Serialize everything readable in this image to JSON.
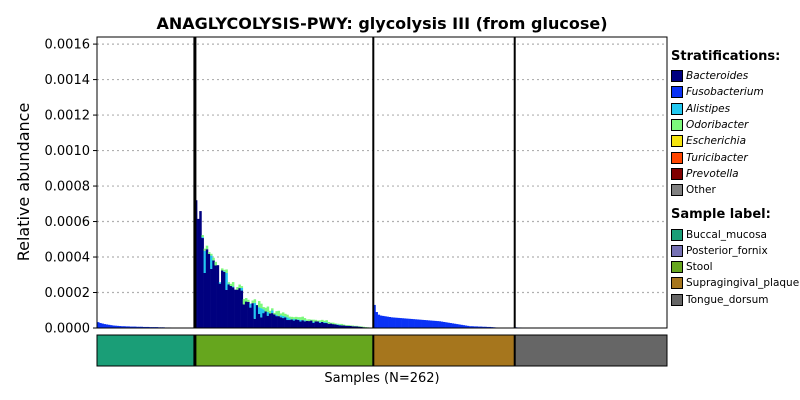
{
  "chart_data": {
    "type": "bar",
    "title": "ANAGLYCOLYSIS-PWY: glycolysis III (from glucose)",
    "ylabel": "Relative abundance",
    "xlabel": "Samples (N=262)",
    "ylim": [
      0,
      0.00164
    ],
    "yticks": [
      "0.0000",
      "0.0002",
      "0.0004",
      "0.0006",
      "0.0008",
      "0.0010",
      "0.0012",
      "0.0014",
      "0.0016"
    ],
    "grid": true,
    "stratifications_title": "Stratifications:",
    "stratifications": [
      {
        "name": "Bacteroides",
        "color": "#00007f"
      },
      {
        "name": "Fusobacterium",
        "color": "#0a32f5"
      },
      {
        "name": "Alistipes",
        "color": "#22c8f0"
      },
      {
        "name": "Odoribacter",
        "color": "#7cf97c"
      },
      {
        "name": "Escherichia",
        "color": "#f5e40f"
      },
      {
        "name": "Turicibacter",
        "color": "#ff4500"
      },
      {
        "name": "Prevotella",
        "color": "#800000"
      },
      {
        "name": "Other",
        "color": "#808080"
      }
    ],
    "sample_label_title": "Sample label:",
    "sample_labels": [
      {
        "name": "Buccal_mucosa",
        "color": "#1a9e77"
      },
      {
        "name": "Posterior_fornix",
        "color": "#7570b3"
      },
      {
        "name": "Stool",
        "color": "#66a61e"
      },
      {
        "name": "Supragingival_plaque",
        "color": "#a6761d"
      },
      {
        "name": "Tongue_dorsum",
        "color": "#666666"
      }
    ],
    "groups": [
      {
        "label": "Buccal_mucosa",
        "color": "#1a9e77",
        "n_samples": 45,
        "stacks": [
          {
            "taxon": "Fusobacterium",
            "values": [
              3.3e-05,
              2.8e-05,
              2.5e-05,
              2.2e-05,
              2e-05,
              1.8e-05,
              1.6e-05,
              1.4e-05,
              1.3e-05,
              1.2e-05,
              1.1e-05,
              1e-05,
              1e-05,
              9e-06,
              9e-06,
              8e-06,
              8e-06,
              8e-06,
              7e-06,
              7e-06,
              7e-06,
              6e-06,
              6e-06,
              6e-06,
              5e-06,
              5e-06,
              5e-06,
              5e-06,
              4e-06,
              4e-06,
              4e-06,
              3e-06,
              3e-06,
              3e-06,
              2e-06,
              2e-06,
              2e-06,
              1e-06,
              1e-06,
              1e-06,
              0,
              0,
              0,
              0,
              0
            ]
          }
        ]
      },
      {
        "label": "Stool",
        "color": "#66a61e",
        "n_samples": 82,
        "stacks": [
          {
            "taxon": "Bacteroides",
            "values": [
              0.00072,
              0.000615,
              0.000659,
              0.000507,
              0.00031,
              0.000444,
              0.000418,
              0.000333,
              0.000381,
              0.000353,
              0.000354,
              0.00025,
              0.000324,
              0.000316,
              0.000215,
              0.000245,
              0.000237,
              0.00023,
              0.000216,
              0.000216,
              0.000225,
              0.000211,
              0.000133,
              0.000149,
              0.000147,
              0.000115,
              0.00014,
              5.2e-05,
              0.000129,
              7.9e-05,
              6e-05,
              8.4e-05,
              9.4e-05,
              6.9e-05,
              8.2e-05,
              8.4e-05,
              7.7e-05,
              6.7e-05,
              6.7e-05,
              6.1e-05,
              5.6e-05,
              5.9e-05,
              4.5e-05,
              4.5e-05,
              4.8e-05,
              4.2e-05,
              4.8e-05,
              4.5e-05,
              3.7e-05,
              4.4e-05,
              3.8e-05,
              4e-05,
              3.9e-05,
              4.2e-05,
              2.9e-05,
              3.8e-05,
              3.7e-05,
              2.9e-05,
              3.4e-05,
              2.8e-05,
              2.8e-05,
              2.4e-05,
              2.5e-05,
              2.2e-05,
              2.1e-05,
              1.8e-05,
              1.6e-05,
              1.5e-05,
              1.4e-05,
              1.3e-05,
              1.2e-05,
              1.2e-05,
              1e-05,
              1e-05,
              9e-06,
              8e-06,
              7e-06,
              5e-06,
              4e-06,
              3e-06,
              2e-06,
              1e-06
            ]
          },
          {
            "taxon": "Alistipes",
            "values": [
              0,
              0,
              0,
              5e-06,
              0.000125,
              0,
              0,
              7.5e-05,
              0,
              0,
              0,
              8e-06,
              0,
              4e-06,
              9.5e-05,
              5e-06,
              0,
              4e-06,
              0,
              0,
              0,
              1.5e-05,
              0,
              0,
              0,
              2.2e-05,
              0,
              9e-05,
              0,
              3.8e-05,
              5.2e-05,
              2.2e-05,
              0,
              2.2e-05,
              0,
              1.5e-05,
              0,
              8e-06,
              0,
              1.1e-05,
              1.2e-05,
              6e-06,
              1.5e-05,
              9e-06,
              0,
              9e-06,
              0,
              4e-06,
              9e-06,
              0,
              6e-06,
              0,
              0,
              0,
              6e-06,
              0,
              0,
              6e-06,
              0,
              5e-06,
              4e-06,
              0,
              0,
              0,
              0,
              3e-06,
              2e-06,
              0,
              0,
              0,
              0,
              0,
              0,
              0,
              0,
              0,
              0,
              0,
              0,
              0,
              0,
              0
            ]
          },
          {
            "taxon": "Odoribacter",
            "values": [
              0,
              0,
              0,
              1.2e-05,
              1.2e-05,
              2e-05,
              1e-05,
              1e-05,
              1.5e-05,
              2e-05,
              0,
              0,
              1.2e-05,
              8e-06,
              2e-05,
              8e-06,
              1.2e-05,
              2.5e-05,
              0,
              1.5e-05,
              2e-05,
              1e-05,
              3e-05,
              2e-05,
              1.2e-05,
              0,
              1.5e-05,
              2e-05,
              0,
              3.5e-05,
              2.5e-05,
              1.2e-05,
              2e-05,
              3e-05,
              1.5e-05,
              1.2e-05,
              8e-06,
              2e-05,
              3e-05,
              1e-05,
              2e-05,
              1.5e-05,
              1.5e-05,
              1e-05,
              1.5e-05,
              1e-05,
              1.5e-05,
              1.2e-05,
              1.5e-05,
              2e-05,
              1.2e-05,
              8e-06,
              1e-05,
              5e-06,
              1.2e-05,
              8e-06,
              5e-06,
              8e-06,
              1.2e-05,
              8e-06,
              1.2e-05,
              1e-05,
              5e-06,
              8e-06,
              5e-06,
              3e-06,
              5e-06,
              8e-06,
              5e-06,
              3e-06,
              5e-06,
              3e-06,
              4e-06,
              2e-06,
              3e-06,
              2e-06,
              2e-06,
              2e-06,
              1e-06,
              1e-06,
              0,
              0
            ]
          }
        ]
      },
      {
        "label": "Supragingival_plaque",
        "color": "#a6761d",
        "n_samples": 65,
        "stacks": [
          {
            "taxon": "Fusobacterium",
            "values": [
              0.00013,
              9e-05,
              7.5e-05,
              7e-05,
              6.8e-05,
              6.6e-05,
              6.4e-05,
              6.2e-05,
              6e-05,
              5.9e-05,
              5.8e-05,
              5.7e-05,
              5.6e-05,
              5.5e-05,
              5.4e-05,
              5.3e-05,
              5.2e-05,
              5.1e-05,
              5e-05,
              4.9e-05,
              4.8e-05,
              4.7e-05,
              4.6e-05,
              4.5e-05,
              4.4e-05,
              4.3e-05,
              4.2e-05,
              4.1e-05,
              4e-05,
              3.9e-05,
              3.8e-05,
              3.6e-05,
              3.4e-05,
              3.2e-05,
              3e-05,
              2.8e-05,
              2.6e-05,
              2.4e-05,
              2.2e-05,
              2e-05,
              1.8e-05,
              1.6e-05,
              1.4e-05,
              1.2e-05,
              1e-05,
              1e-05,
              9e-06,
              9e-06,
              8e-06,
              8e-06,
              7e-06,
              7e-06,
              6e-06,
              6e-06,
              5e-06,
              4e-06,
              3e-06,
              2e-06,
              1e-06,
              1e-06,
              0,
              0,
              0,
              0,
              0
            ]
          }
        ]
      },
      {
        "label": "Tongue_dorsum",
        "color": "#666666",
        "n_samples": 70,
        "stacks": [
          {
            "taxon": "Fusobacterium",
            "values": [
              4e-06,
              3e-06,
              3e-06,
              2e-06,
              2e-06,
              1e-06,
              0,
              0,
              0,
              0,
              0,
              0,
              0,
              0,
              0,
              0,
              0,
              0,
              0,
              0,
              0,
              0,
              0,
              0,
              0,
              0,
              0,
              0,
              0,
              0,
              0,
              0,
              0,
              0,
              0,
              0,
              0,
              0,
              0,
              0,
              0,
              0,
              0,
              0,
              0,
              0,
              0,
              0,
              0,
              0,
              0,
              0,
              0,
              0,
              0,
              0,
              0,
              0,
              0,
              0,
              0,
              0,
              0,
              0,
              0,
              0,
              0,
              0,
              0,
              0
            ]
          }
        ]
      }
    ]
  }
}
